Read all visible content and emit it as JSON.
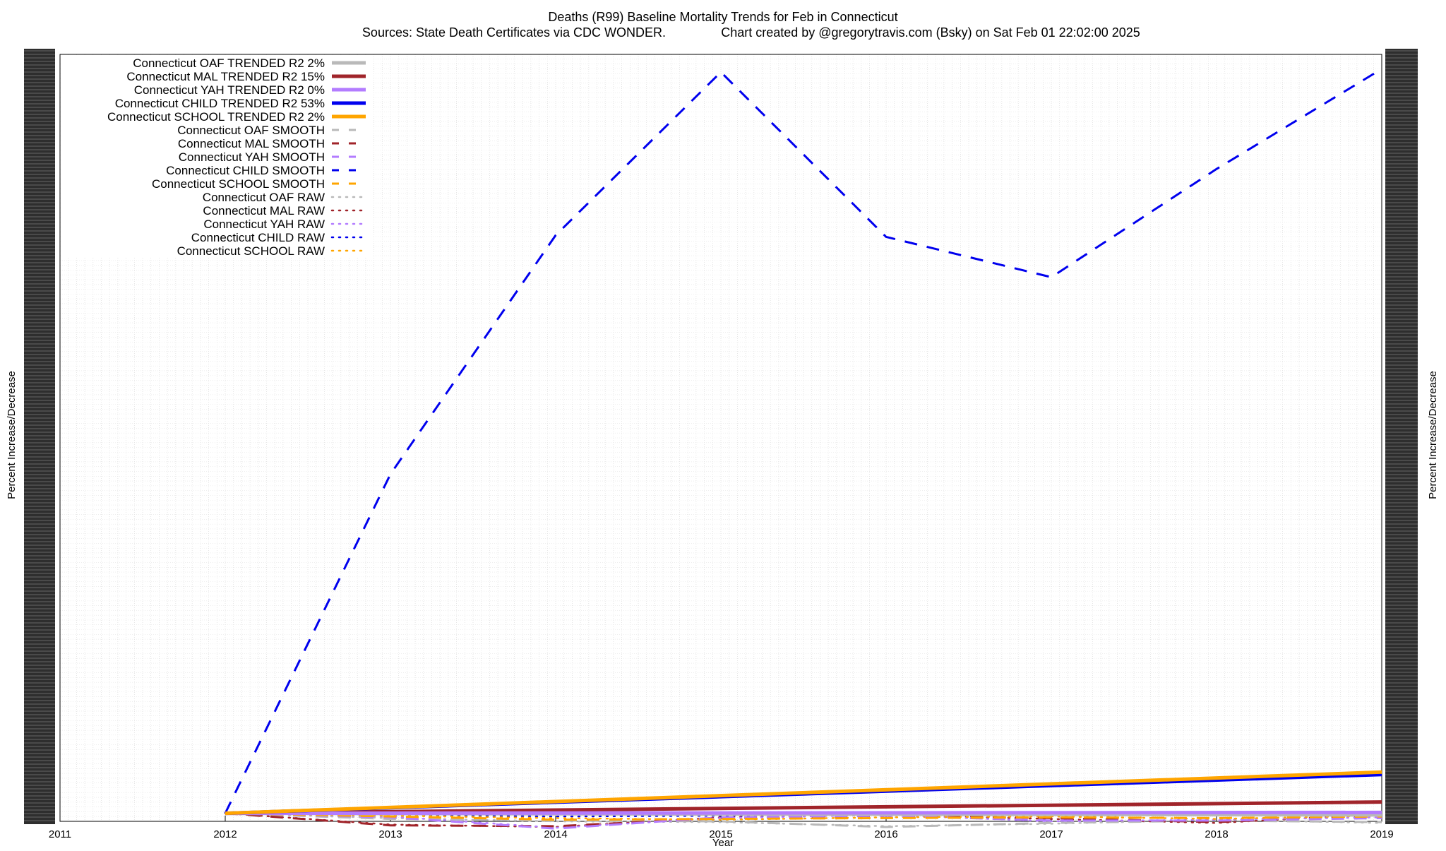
{
  "chart_data": {
    "type": "line",
    "title": "Deaths (R99)  Baseline Mortality Trends for Feb in Connecticut",
    "subtitle_left": "Sources: State Death Certificates via CDC WONDER.",
    "subtitle_right": "Chart created by @gregorytravis.com (Bsky) on Sat Feb 01 22:02:00 2025",
    "xlabel": "Year",
    "ylabel_left": "Percent Increase/Decrease",
    "ylabel_right": "Percent Increase/Decrease",
    "xlim": [
      2011,
      2019
    ],
    "ylim": [
      -50,
      4700
    ],
    "x_ticks": [
      2011,
      2012,
      2013,
      2014,
      2015,
      2016,
      2017,
      2018,
      2019
    ],
    "grid": true,
    "legend_position": "top-left",
    "colors": {
      "OAF": "#b9b9b9",
      "MAL": "#a0242a",
      "YAH": "#b37cff",
      "CHILD": "#0000ee",
      "SCHOOL": "#ffa500"
    },
    "series": [
      {
        "name": "Connecticut OAF TRENDED R2   2%",
        "group": "OAF",
        "style": "trended",
        "x": [
          2012,
          2019
        ],
        "y": [
          0,
          -10
        ]
      },
      {
        "name": "Connecticut MAL TRENDED R2  15%",
        "group": "MAL",
        "style": "trended",
        "x": [
          2012,
          2019
        ],
        "y": [
          0,
          70
        ]
      },
      {
        "name": "Connecticut YAH TRENDED R2   0%",
        "group": "YAH",
        "style": "trended",
        "x": [
          2012,
          2019
        ],
        "y": [
          0,
          5
        ]
      },
      {
        "name": "Connecticut CHILD TRENDED R2  53%",
        "group": "CHILD",
        "style": "trended",
        "x": [
          2012,
          2019
        ],
        "y": [
          0,
          240
        ]
      },
      {
        "name": "Connecticut SCHOOL TRENDED R2   2%",
        "group": "SCHOOL",
        "style": "trended",
        "x": [
          2012,
          2019
        ],
        "y": [
          0,
          255
        ]
      },
      {
        "name": "Connecticut OAF SMOOTH",
        "group": "OAF",
        "style": "smooth",
        "x": [
          2012,
          2013,
          2014,
          2015,
          2016,
          2017,
          2018,
          2019
        ],
        "y": [
          0,
          -35,
          -45,
          -50,
          -85,
          -60,
          -45,
          -55
        ]
      },
      {
        "name": "Connecticut MAL SMOOTH",
        "group": "MAL",
        "style": "smooth",
        "x": [
          2012,
          2013,
          2014,
          2015,
          2016,
          2017,
          2018,
          2019
        ],
        "y": [
          0,
          -75,
          -80,
          -30,
          -15,
          -30,
          -55,
          -10
        ]
      },
      {
        "name": "Connecticut YAH SMOOTH",
        "group": "YAH",
        "style": "smooth",
        "x": [
          2012,
          2013,
          2014,
          2015,
          2016,
          2017,
          2018,
          2019
        ],
        "y": [
          0,
          -25,
          -95,
          -25,
          -15,
          -45,
          -45,
          -30
        ]
      },
      {
        "name": "Connecticut CHILD SMOOTH",
        "group": "CHILD",
        "style": "smooth",
        "x": [
          2012,
          2013,
          2014,
          2015,
          2016,
          2017,
          2018,
          2019
        ],
        "y": [
          0,
          2100,
          3580,
          4590,
          3570,
          3320,
          3990,
          4610
        ]
      },
      {
        "name": "Connecticut SCHOOL SMOOTH",
        "group": "SCHOOL",
        "style": "smooth",
        "x": [
          2012,
          2013,
          2014,
          2015,
          2016,
          2017,
          2018,
          2019
        ],
        "y": [
          0,
          -20,
          -40,
          -35,
          -30,
          -25,
          -30,
          -20
        ]
      },
      {
        "name": "Connecticut OAF RAW",
        "group": "OAF",
        "style": "raw",
        "x": [
          2012,
          2013,
          2014,
          2015,
          2016,
          2017,
          2018,
          2019
        ],
        "y": [
          0,
          -30,
          -50,
          -55,
          -80,
          -65,
          -40,
          -60
        ]
      },
      {
        "name": "Connecticut MAL RAW",
        "group": "MAL",
        "style": "raw",
        "x": [
          2012,
          2013,
          2014,
          2015,
          2016,
          2017,
          2018,
          2019
        ],
        "y": [
          0,
          -70,
          -85,
          -25,
          -10,
          -35,
          -60,
          -5
        ]
      },
      {
        "name": "Connecticut YAH RAW",
        "group": "YAH",
        "style": "raw",
        "x": [
          2012,
          2013,
          2014,
          2015,
          2016,
          2017,
          2018,
          2019
        ],
        "y": [
          0,
          -20,
          -90,
          -30,
          -10,
          -50,
          -40,
          -25
        ]
      },
      {
        "name": "Connecticut CHILD RAW",
        "group": "CHILD",
        "style": "raw",
        "x": [
          2012,
          2013,
          2014,
          2015,
          2016,
          2017,
          2018,
          2019
        ],
        "y": [
          0,
          -10,
          -20,
          -15,
          -5,
          -15,
          -10,
          0
        ]
      },
      {
        "name": "Connecticut SCHOOL RAW",
        "group": "SCHOOL",
        "style": "raw",
        "x": [
          2012,
          2013,
          2014,
          2015,
          2016,
          2017,
          2018,
          2019
        ],
        "y": [
          0,
          -15,
          -30,
          -40,
          -25,
          -20,
          -35,
          -15
        ]
      }
    ]
  }
}
